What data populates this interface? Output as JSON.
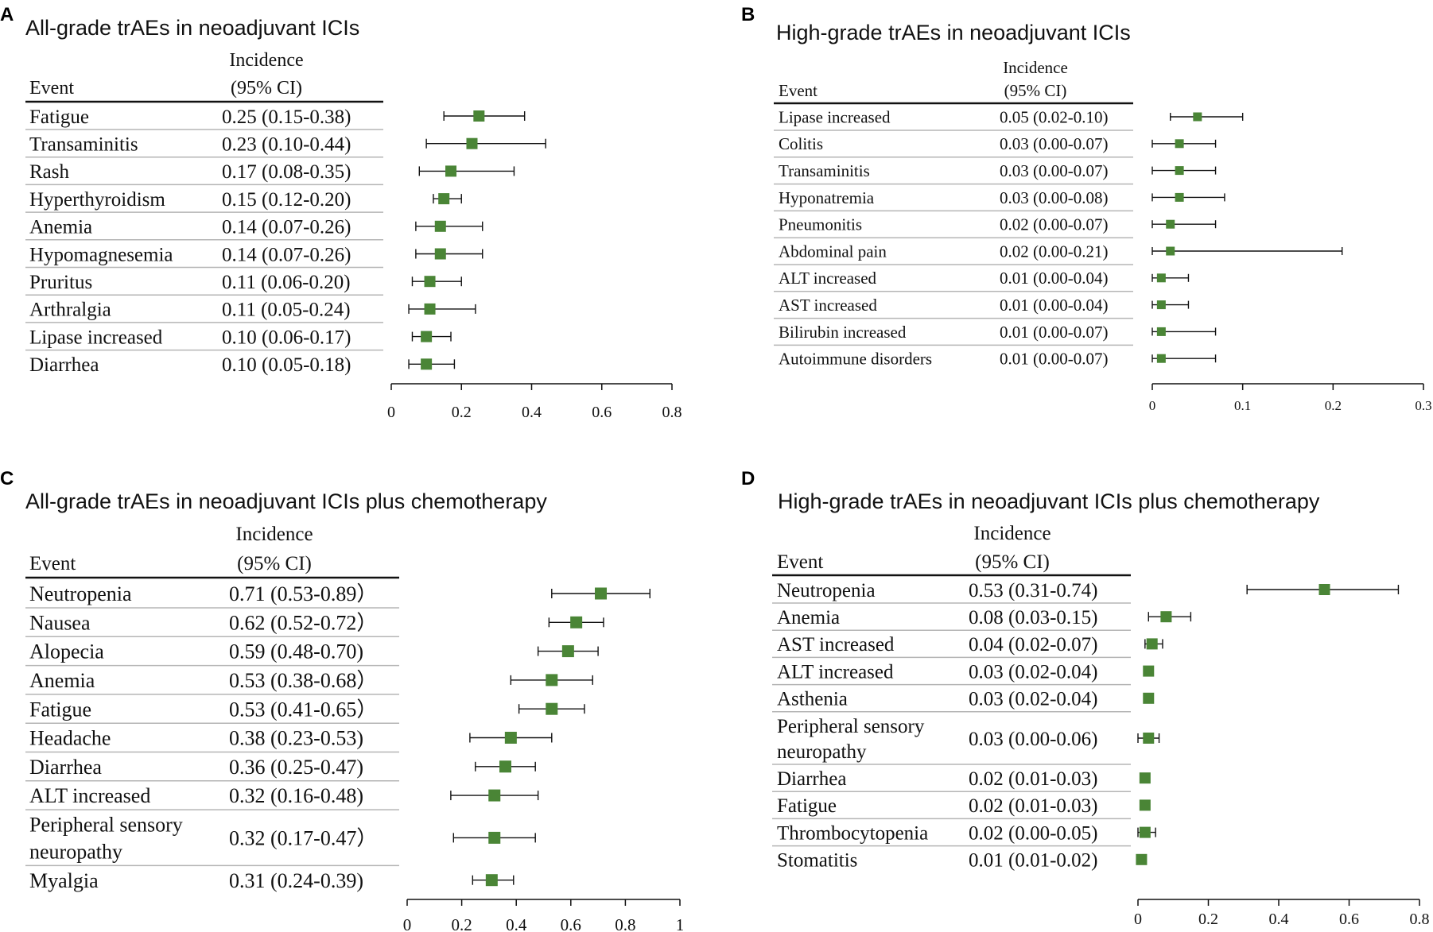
{
  "chart_data": [
    {
      "type": "forest",
      "panel_label": "A",
      "title": "All-grade trAEs in neoadjuvant ICIs",
      "col_event": "Event",
      "col_incidence_1": "Incidence",
      "col_incidence_2": "(95% CI)",
      "xlim": [
        0,
        0.8
      ],
      "ticks": [
        0,
        0.2,
        0.4,
        0.6,
        0.8
      ],
      "tick_labels": [
        "0",
        "0.2",
        "0.4",
        "0.6",
        "0.8"
      ],
      "rows": [
        {
          "event": "Fatigue",
          "text": "0.25 (0.15-0.38)",
          "est": 0.25,
          "lo": 0.15,
          "hi": 0.38
        },
        {
          "event": "Transaminitis",
          "text": "0.23 (0.10-0.44)",
          "est": 0.23,
          "lo": 0.1,
          "hi": 0.44
        },
        {
          "event": "Rash",
          "text": "0.17 (0.08-0.35)",
          "est": 0.17,
          "lo": 0.08,
          "hi": 0.35
        },
        {
          "event": "Hyperthyroidism",
          "text": "0.15 (0.12-0.20)",
          "est": 0.15,
          "lo": 0.12,
          "hi": 0.2
        },
        {
          "event": "Anemia",
          "text": "0.14 (0.07-0.26)",
          "est": 0.14,
          "lo": 0.07,
          "hi": 0.26
        },
        {
          "event": "Hypomagnesemia",
          "text": "0.14 (0.07-0.26)",
          "est": 0.14,
          "lo": 0.07,
          "hi": 0.26
        },
        {
          "event": "Pruritus",
          "text": "0.11 (0.06-0.20)",
          "est": 0.11,
          "lo": 0.06,
          "hi": 0.2
        },
        {
          "event": "Arthralgia",
          "text": "0.11 (0.05-0.24)",
          "est": 0.11,
          "lo": 0.05,
          "hi": 0.24
        },
        {
          "event": "Lipase increased",
          "text": "0.10 (0.06-0.17)",
          "est": 0.1,
          "lo": 0.06,
          "hi": 0.17
        },
        {
          "event": "Diarrhea",
          "text": "0.10 (0.05-0.18)",
          "est": 0.1,
          "lo": 0.05,
          "hi": 0.18
        }
      ]
    },
    {
      "type": "forest",
      "panel_label": "B",
      "title": "High-grade trAEs in neoadjuvant ICIs",
      "col_event": "Event",
      "col_incidence_1": "Incidence",
      "col_incidence_2": "(95% CI)",
      "xlim": [
        0,
        0.3
      ],
      "ticks": [
        0,
        0.1,
        0.2,
        0.3
      ],
      "tick_labels": [
        "0",
        "0.1",
        "0.2",
        "0.3"
      ],
      "rows": [
        {
          "event": "Lipase increased",
          "text": "0.05 (0.02-0.10)",
          "est": 0.05,
          "lo": 0.02,
          "hi": 0.1
        },
        {
          "event": "Colitis",
          "text": "0.03 (0.00-0.07)",
          "est": 0.03,
          "lo": 0.0,
          "hi": 0.07
        },
        {
          "event": "Transaminitis",
          "text": "0.03 (0.00-0.07)",
          "est": 0.03,
          "lo": 0.0,
          "hi": 0.07
        },
        {
          "event": "Hyponatremia",
          "text": "0.03 (0.00-0.08)",
          "est": 0.03,
          "lo": 0.0,
          "hi": 0.08
        },
        {
          "event": "Pneumonitis",
          "text": "0.02 (0.00-0.07)",
          "est": 0.02,
          "lo": 0.0,
          "hi": 0.07
        },
        {
          "event": "Abdominal pain",
          "text": "0.02 (0.00-0.21)",
          "est": 0.02,
          "lo": 0.0,
          "hi": 0.21
        },
        {
          "event": "ALT increased",
          "text": "0.01 (0.00-0.04)",
          "est": 0.01,
          "lo": 0.0,
          "hi": 0.04
        },
        {
          "event": "AST increased",
          "text": "0.01 (0.00-0.04)",
          "est": 0.01,
          "lo": 0.0,
          "hi": 0.04
        },
        {
          "event": "Bilirubin increased",
          "text": "0.01 (0.00-0.07)",
          "est": 0.01,
          "lo": 0.0,
          "hi": 0.07
        },
        {
          "event": "Autoimmune disorders",
          "text": "0.01 (0.00-0.07)",
          "est": 0.01,
          "lo": 0.0,
          "hi": 0.07
        }
      ]
    },
    {
      "type": "forest",
      "panel_label": "C",
      "title": "All-grade trAEs in neoadjuvant ICIs plus chemotherapy",
      "col_event": "Event",
      "col_incidence_1": "Incidence",
      "col_incidence_2": "(95% CI)",
      "xlim": [
        0,
        1
      ],
      "ticks": [
        0,
        0.2,
        0.4,
        0.6,
        0.8,
        1
      ],
      "tick_labels": [
        "0",
        "0.2",
        "0.4",
        "0.6",
        "0.8",
        "1"
      ],
      "rows": [
        {
          "event": "Neutropenia",
          "text": "0.71 (0.53-0.89）",
          "est": 0.71,
          "lo": 0.53,
          "hi": 0.89
        },
        {
          "event": "Nausea",
          "text": "0.62 (0.52-0.72）",
          "est": 0.62,
          "lo": 0.52,
          "hi": 0.72
        },
        {
          "event": "Alopecia",
          "text": "0.59 (0.48-0.70)",
          "est": 0.59,
          "lo": 0.48,
          "hi": 0.7
        },
        {
          "event": "Anemia",
          "text": "0.53 (0.38-0.68）",
          "est": 0.53,
          "lo": 0.38,
          "hi": 0.68
        },
        {
          "event": "Fatigue",
          "text": "0.53 (0.41-0.65）",
          "est": 0.53,
          "lo": 0.41,
          "hi": 0.65
        },
        {
          "event": "Headache",
          "text": "0.38 (0.23-0.53)",
          "est": 0.38,
          "lo": 0.23,
          "hi": 0.53
        },
        {
          "event": "Diarrhea",
          "text": "0.36 (0.25-0.47)",
          "est": 0.36,
          "lo": 0.25,
          "hi": 0.47
        },
        {
          "event": "ALT increased",
          "text": "0.32 (0.16-0.48)",
          "est": 0.32,
          "lo": 0.16,
          "hi": 0.48
        },
        {
          "event": "Peripheral sensory neuropathy",
          "event_lines": [
            "Peripheral sensory",
            "neuropathy"
          ],
          "text": "0.32 (0.17-0.47）",
          "est": 0.32,
          "lo": 0.17,
          "hi": 0.47
        },
        {
          "event": "Myalgia",
          "text": "0.31 (0.24-0.39)",
          "est": 0.31,
          "lo": 0.24,
          "hi": 0.39
        }
      ]
    },
    {
      "type": "forest",
      "panel_label": "D",
      "title": "High-grade trAEs in neoadjuvant ICIs plus chemotherapy",
      "col_event": "Event",
      "col_incidence_1": "Incidence",
      "col_incidence_2": "(95% CI)",
      "xlim": [
        0,
        0.8
      ],
      "ticks": [
        0,
        0.2,
        0.4,
        0.6,
        0.8
      ],
      "tick_labels": [
        "0",
        "0.2",
        "0.4",
        "0.6",
        "0.8"
      ],
      "rows": [
        {
          "event": "Neutropenia",
          "text": "0.53 (0.31-0.74)",
          "est": 0.53,
          "lo": 0.31,
          "hi": 0.74
        },
        {
          "event": "Anemia",
          "text": "0.08 (0.03-0.15)",
          "est": 0.08,
          "lo": 0.03,
          "hi": 0.15
        },
        {
          "event": "AST increased",
          "text": "0.04 (0.02-0.07)",
          "est": 0.04,
          "lo": 0.02,
          "hi": 0.07
        },
        {
          "event": "ALT increased",
          "text": "0.03 (0.02-0.04)",
          "est": 0.03,
          "lo": 0.02,
          "hi": 0.04
        },
        {
          "event": "Asthenia",
          "text": "0.03 (0.02-0.04)",
          "est": 0.03,
          "lo": 0.02,
          "hi": 0.04
        },
        {
          "event": "Peripheral sensory neuropathy",
          "event_lines": [
            "Peripheral sensory",
            "neuropathy"
          ],
          "text": "0.03 (0.00-0.06)",
          "est": 0.03,
          "lo": 0.0,
          "hi": 0.06
        },
        {
          "event": "Diarrhea",
          "text": "0.02 (0.01-0.03)",
          "est": 0.02,
          "lo": 0.01,
          "hi": 0.03
        },
        {
          "event": "Fatigue",
          "text": "0.02 (0.01-0.03)",
          "est": 0.02,
          "lo": 0.01,
          "hi": 0.03
        },
        {
          "event": "Thrombocytopenia",
          "text": "0.02 (0.00-0.05)",
          "est": 0.02,
          "lo": 0.0,
          "hi": 0.05
        },
        {
          "event": "Stomatitis",
          "text": "0.01 (0.01-0.02)",
          "est": 0.01,
          "lo": 0.01,
          "hi": 0.02
        }
      ]
    }
  ],
  "colors": {
    "marker": "#4a8536",
    "line": "#111111",
    "row_rule": "#b5b5b5"
  }
}
